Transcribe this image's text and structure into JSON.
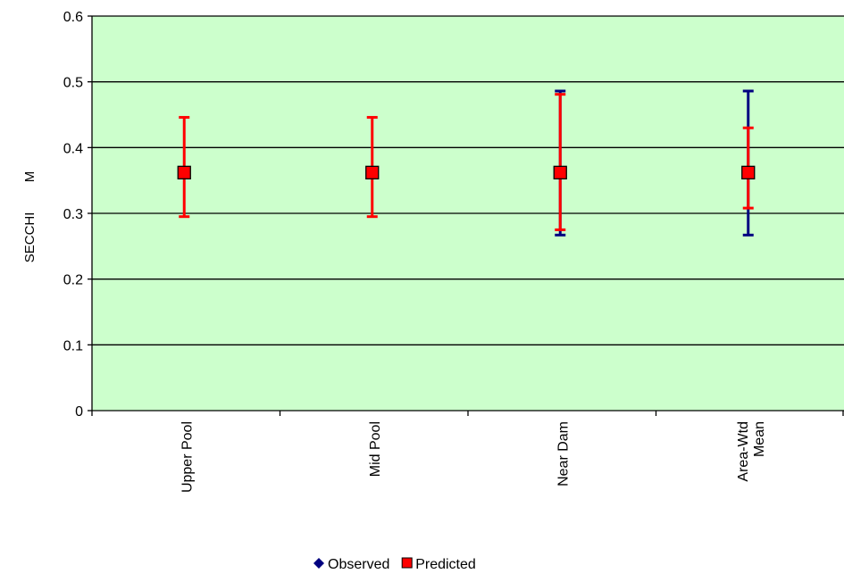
{
  "chart_data": {
    "type": "scatter",
    "title": "",
    "xlabel": "",
    "ylabel": "SECCHI        M",
    "ylim": [
      0,
      0.6
    ],
    "yticks": [
      0,
      0.1,
      0.2,
      0.3,
      0.4,
      0.5,
      0.6
    ],
    "ytick_labels": [
      "0",
      "0.1",
      "0.2",
      "0.3",
      "0.4",
      "0.5",
      "0.6"
    ],
    "grid": true,
    "legend_position": "bottom",
    "categories": [
      [
        "Upper Pool"
      ],
      [
        "Mid Pool"
      ],
      [
        "Near Dam"
      ],
      [
        "Area-Wtd",
        "Mean"
      ]
    ],
    "series": [
      {
        "name": "Observed",
        "color": "#000080",
        "marker": "diamond",
        "values": [
          null,
          null,
          0.362,
          0.362
        ],
        "err_low": [
          null,
          null,
          0.267,
          0.267
        ],
        "err_high": [
          null,
          null,
          0.486,
          0.486
        ]
      },
      {
        "name": "Predicted",
        "color": "#ff0000",
        "marker": "square",
        "values": [
          0.362,
          0.362,
          0.362,
          0.362
        ],
        "err_low": [
          0.295,
          0.295,
          0.275,
          0.308
        ],
        "err_high": [
          0.446,
          0.446,
          0.481,
          0.43
        ]
      }
    ],
    "colors": {
      "plot_bg": "#ccffcc",
      "grid": "#000000",
      "axis": "#000000"
    }
  }
}
